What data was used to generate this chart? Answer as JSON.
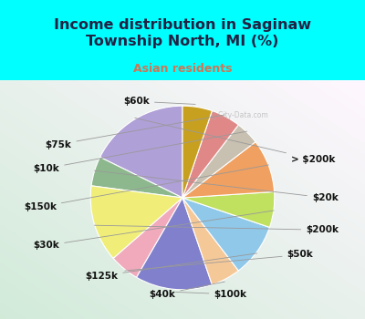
{
  "title": "Income distribution in Saginaw\nTownship North, MI (%)",
  "subtitle": "Asian residents",
  "bg_cyan": "#00FFFF",
  "title_color": "#222244",
  "subtitle_color": "#cc7755",
  "labels": [
    "> $200k",
    "$20k",
    "$200k",
    "$50k",
    "$100k",
    "$40k",
    "$125k",
    "$30k",
    "$150k",
    "$10k",
    "$75k",
    "$60k"
  ],
  "values": [
    17,
    5,
    13,
    5,
    13,
    5,
    9,
    6,
    9,
    4,
    5,
    5
  ],
  "colors": [
    "#b0a0d8",
    "#8db88d",
    "#f0ee78",
    "#f0aabb",
    "#8080cc",
    "#f5c898",
    "#90c8ea",
    "#c0e060",
    "#f0a060",
    "#c8c0b0",
    "#e08888",
    "#c8a020"
  ],
  "startangle": 90,
  "watermark": "ⓘ City-Data.com",
  "label_fontsize": 7.5,
  "label_fontweight": "bold"
}
